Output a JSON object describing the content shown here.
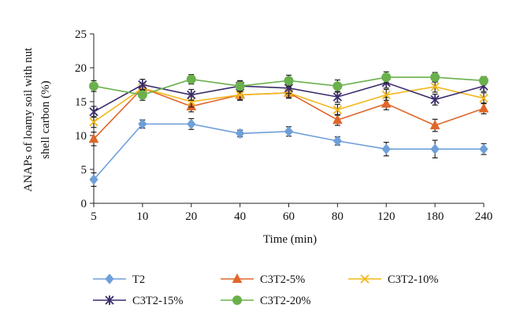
{
  "chart_data": {
    "type": "line",
    "title": "",
    "xlabel": "Time (min)",
    "ylabel_lines": [
      "ANAPs of loamy soil with nut",
      "shell carbon (%)"
    ],
    "categories": [
      "5",
      "10",
      "20",
      "40",
      "60",
      "80",
      "120",
      "180",
      "240"
    ],
    "ylim": [
      0,
      25
    ],
    "yticks": [
      0,
      5,
      10,
      15,
      20,
      25
    ],
    "grid": false,
    "legend_position": "bottom",
    "series": [
      {
        "name": "T2",
        "color": "#6f9fd8",
        "marker": "diamond",
        "values": [
          3.5,
          11.7,
          11.7,
          10.3,
          10.6,
          9.2,
          8.0,
          8.0,
          8.0
        ],
        "errors": [
          1.0,
          0.6,
          0.8,
          0.5,
          0.7,
          0.6,
          1.0,
          1.3,
          0.8
        ]
      },
      {
        "name": "C3T2-5%",
        "color": "#e0662a",
        "marker": "triangle",
        "values": [
          9.5,
          17.0,
          14.3,
          16.0,
          16.3,
          12.3,
          14.7,
          11.5,
          14.0
        ],
        "errors": [
          1.0,
          0.7,
          0.8,
          0.8,
          0.8,
          0.8,
          0.9,
          0.9,
          0.8
        ]
      },
      {
        "name": "C3T2-10%",
        "color": "#f2b81c",
        "marker": "x",
        "values": [
          12.0,
          17.0,
          15.0,
          16.0,
          16.3,
          13.8,
          16.0,
          17.2,
          15.5
        ],
        "errors": [
          0.8,
          0.7,
          0.8,
          0.7,
          0.7,
          0.8,
          0.8,
          0.8,
          0.8
        ]
      },
      {
        "name": "C3T2-15%",
        "color": "#3a2c6b",
        "marker": "asterisk",
        "values": [
          13.5,
          17.5,
          16.0,
          17.3,
          17.0,
          15.7,
          17.8,
          15.3,
          17.3
        ],
        "errors": [
          0.8,
          0.8,
          0.8,
          0.8,
          0.8,
          0.8,
          0.8,
          0.8,
          0.8
        ]
      },
      {
        "name": "C3T2-20%",
        "color": "#6ab04c",
        "marker": "circle",
        "values": [
          17.3,
          16.0,
          18.3,
          17.3,
          18.1,
          17.3,
          18.6,
          18.6,
          18.1
        ],
        "errors": [
          0.8,
          0.8,
          0.7,
          0.7,
          0.8,
          0.9,
          0.8,
          0.7,
          0.6
        ]
      }
    ]
  }
}
